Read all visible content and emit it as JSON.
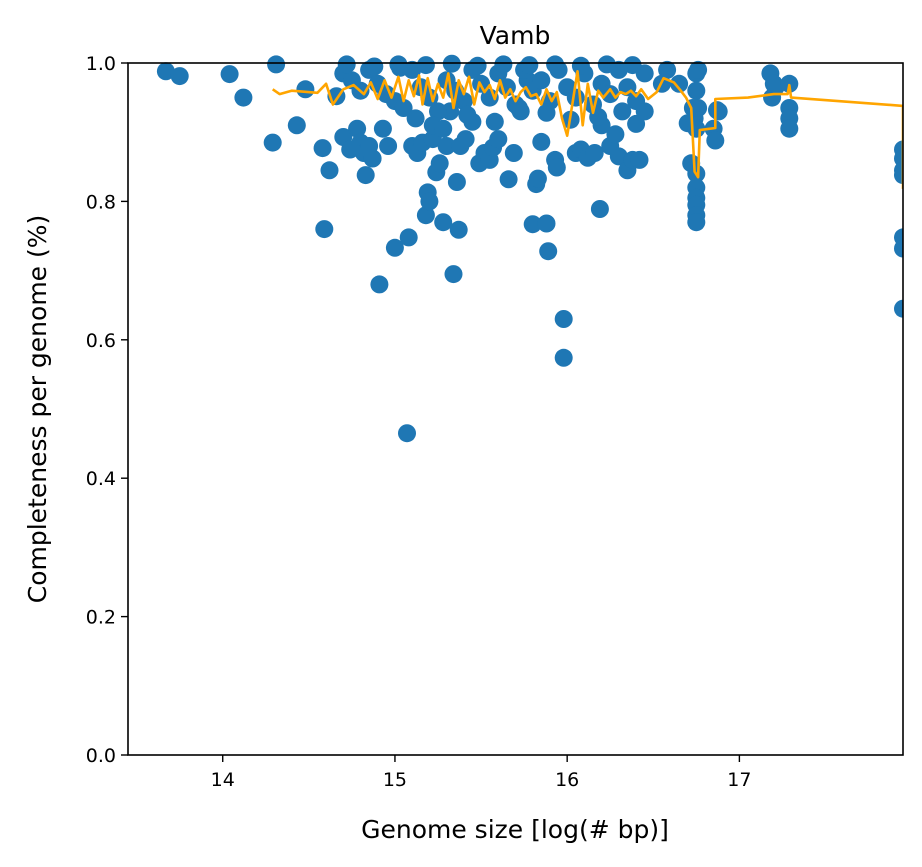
{
  "chart_data": {
    "type": "scatter",
    "title": "Vamb",
    "xlabel": "Genome size [log(# bp)]",
    "ylabel": "Completeness per genome (%)",
    "xlim": [
      13.45,
      17.95
    ],
    "ylim": [
      0.0,
      1.0
    ],
    "xticks": [
      14,
      15,
      16,
      17
    ],
    "yticks": [
      0.0,
      0.2,
      0.4,
      0.6,
      0.8,
      1.0
    ],
    "xtick_labels": [
      "14",
      "15",
      "16",
      "17"
    ],
    "ytick_labels": [
      "0.0",
      "0.2",
      "0.4",
      "0.6",
      "0.8",
      "1.0"
    ],
    "grid": false,
    "colors": {
      "points": "#1f77b4",
      "line": "#ffa500"
    },
    "series": [
      {
        "kind": "scatter",
        "points": [
          [
            13.67,
            0.988
          ],
          [
            13.75,
            0.981
          ],
          [
            14.04,
            0.984
          ],
          [
            14.12,
            0.95
          ],
          [
            14.29,
            0.885
          ],
          [
            14.31,
            0.998
          ],
          [
            14.43,
            0.91
          ],
          [
            14.48,
            0.962
          ],
          [
            14.58,
            0.877
          ],
          [
            14.59,
            0.76
          ],
          [
            14.62,
            0.845
          ],
          [
            14.66,
            0.952
          ],
          [
            14.7,
            0.893
          ],
          [
            14.74,
            0.875
          ],
          [
            14.78,
            0.905
          ],
          [
            14.8,
            0.885
          ],
          [
            14.82,
            0.87
          ],
          [
            14.83,
            0.838
          ],
          [
            14.85,
            0.88
          ],
          [
            14.87,
            0.862
          ],
          [
            14.91,
            0.68
          ],
          [
            14.93,
            0.905
          ],
          [
            14.96,
            0.88
          ],
          [
            15.0,
            0.733
          ],
          [
            15.03,
            0.993
          ],
          [
            15.07,
            0.465
          ],
          [
            15.08,
            0.748
          ],
          [
            15.1,
            0.88
          ],
          [
            15.13,
            0.87
          ],
          [
            15.16,
            0.885
          ],
          [
            15.18,
            0.78
          ],
          [
            15.19,
            0.813
          ],
          [
            15.2,
            0.8
          ],
          [
            15.22,
            0.89
          ],
          [
            15.24,
            0.842
          ],
          [
            15.26,
            0.855
          ],
          [
            15.28,
            0.77
          ],
          [
            15.3,
            0.88
          ],
          [
            15.32,
            0.93
          ],
          [
            15.34,
            0.695
          ],
          [
            15.36,
            0.828
          ],
          [
            15.37,
            0.759
          ],
          [
            15.38,
            0.88
          ],
          [
            15.41,
            0.89
          ],
          [
            15.45,
            0.915
          ],
          [
            15.49,
            0.855
          ],
          [
            15.52,
            0.87
          ],
          [
            15.55,
            0.86
          ],
          [
            15.57,
            0.878
          ],
          [
            15.6,
            0.89
          ],
          [
            15.66,
            0.832
          ],
          [
            15.69,
            0.87
          ],
          [
            15.73,
            0.93
          ],
          [
            15.77,
            0.975
          ],
          [
            15.8,
            0.767
          ],
          [
            15.82,
            0.825
          ],
          [
            15.83,
            0.833
          ],
          [
            15.85,
            0.886
          ],
          [
            15.88,
            0.768
          ],
          [
            15.89,
            0.728
          ],
          [
            15.93,
            0.86
          ],
          [
            15.94,
            0.849
          ],
          [
            15.98,
            0.63
          ],
          [
            15.98,
            0.574
          ],
          [
            16.05,
            0.87
          ],
          [
            16.08,
            0.875
          ],
          [
            16.12,
            0.863
          ],
          [
            16.16,
            0.87
          ],
          [
            16.19,
            0.789
          ],
          [
            16.2,
            0.91
          ],
          [
            16.25,
            0.88
          ],
          [
            16.28,
            0.897
          ],
          [
            16.3,
            0.865
          ],
          [
            16.35,
            0.845
          ],
          [
            16.38,
            0.86
          ],
          [
            16.42,
            0.86
          ],
          [
            16.4,
            0.912
          ],
          [
            16.45,
            0.985
          ],
          [
            16.55,
            0.97
          ],
          [
            16.58,
            0.99
          ],
          [
            16.65,
            0.97
          ],
          [
            16.7,
            0.913
          ],
          [
            16.72,
            0.855
          ],
          [
            16.73,
            0.935
          ],
          [
            16.74,
            0.92
          ],
          [
            16.75,
            0.905
          ],
          [
            16.75,
            0.84
          ],
          [
            16.75,
            0.82
          ],
          [
            16.75,
            0.805
          ],
          [
            16.75,
            0.795
          ],
          [
            16.75,
            0.78
          ],
          [
            16.75,
            0.77
          ],
          [
            16.75,
            0.985
          ],
          [
            16.75,
            0.96
          ],
          [
            16.76,
            0.99
          ],
          [
            16.76,
            0.935
          ],
          [
            16.85,
            0.905
          ],
          [
            16.86,
            0.888
          ],
          [
            16.87,
            0.932
          ],
          [
            16.88,
            0.93
          ],
          [
            17.18,
            0.985
          ],
          [
            17.19,
            0.95
          ],
          [
            17.2,
            0.97
          ],
          [
            17.21,
            0.965
          ],
          [
            17.29,
            0.97
          ],
          [
            17.29,
            0.935
          ],
          [
            17.29,
            0.92
          ],
          [
            17.29,
            0.905
          ],
          [
            17.95,
            0.875
          ],
          [
            17.95,
            0.862
          ],
          [
            17.95,
            0.845
          ],
          [
            17.95,
            0.838
          ],
          [
            17.95,
            0.748
          ],
          [
            17.95,
            0.732
          ],
          [
            17.95,
            0.645
          ],
          [
            14.7,
            0.985
          ],
          [
            14.75,
            0.975
          ],
          [
            14.8,
            0.96
          ],
          [
            14.85,
            0.99
          ],
          [
            14.9,
            0.97
          ],
          [
            14.95,
            0.955
          ],
          [
            15.0,
            0.945
          ],
          [
            15.05,
            0.935
          ],
          [
            15.1,
            0.99
          ],
          [
            15.15,
            0.965
          ],
          [
            15.2,
            0.95
          ],
          [
            15.25,
            0.93
          ],
          [
            15.3,
            0.975
          ],
          [
            15.35,
            0.96
          ],
          [
            15.4,
            0.945
          ],
          [
            15.45,
            0.99
          ],
          [
            15.5,
            0.97
          ],
          [
            15.55,
            0.95
          ],
          [
            15.6,
            0.985
          ],
          [
            15.65,
            0.965
          ],
          [
            15.7,
            0.94
          ],
          [
            15.75,
            0.99
          ],
          [
            15.8,
            0.96
          ],
          [
            15.85,
            0.975
          ],
          [
            15.9,
            0.945
          ],
          [
            15.95,
            0.99
          ],
          [
            16.0,
            0.965
          ],
          [
            16.05,
            0.95
          ],
          [
            16.1,
            0.985
          ],
          [
            16.15,
            0.94
          ],
          [
            16.2,
            0.97
          ],
          [
            16.25,
            0.955
          ],
          [
            16.3,
            0.99
          ],
          [
            16.35,
            0.965
          ],
          [
            16.4,
            0.945
          ],
          [
            16.45,
            0.93
          ],
          [
            14.72,
            0.998
          ],
          [
            14.88,
            0.995
          ],
          [
            15.02,
            0.998
          ],
          [
            15.18,
            0.997
          ],
          [
            15.33,
            0.999
          ],
          [
            15.48,
            0.996
          ],
          [
            15.63,
            0.998
          ],
          [
            15.78,
            0.997
          ],
          [
            15.93,
            0.998
          ],
          [
            16.08,
            0.996
          ],
          [
            16.23,
            0.998
          ],
          [
            16.38,
            0.997
          ],
          [
            15.12,
            0.92
          ],
          [
            15.22,
            0.91
          ],
          [
            15.28,
            0.905
          ],
          [
            15.42,
            0.925
          ],
          [
            15.58,
            0.915
          ],
          [
            15.72,
            0.935
          ],
          [
            15.88,
            0.928
          ],
          [
            16.02,
            0.918
          ],
          [
            16.18,
            0.922
          ],
          [
            16.32,
            0.93
          ]
        ]
      },
      {
        "kind": "line",
        "points": [
          [
            14.29,
            0.962
          ],
          [
            14.33,
            0.955
          ],
          [
            14.4,
            0.96
          ],
          [
            14.55,
            0.957
          ],
          [
            14.6,
            0.97
          ],
          [
            14.64,
            0.94
          ],
          [
            14.7,
            0.962
          ],
          [
            14.76,
            0.968
          ],
          [
            14.82,
            0.955
          ],
          [
            14.86,
            0.972
          ],
          [
            14.9,
            0.948
          ],
          [
            14.94,
            0.975
          ],
          [
            14.98,
            0.95
          ],
          [
            15.02,
            0.98
          ],
          [
            15.05,
            0.945
          ],
          [
            15.08,
            0.975
          ],
          [
            15.11,
            0.952
          ],
          [
            15.14,
            0.982
          ],
          [
            15.16,
            0.94
          ],
          [
            15.19,
            0.978
          ],
          [
            15.22,
            0.945
          ],
          [
            15.25,
            0.97
          ],
          [
            15.28,
            0.95
          ],
          [
            15.31,
            0.985
          ],
          [
            15.34,
            0.935
          ],
          [
            15.37,
            0.975
          ],
          [
            15.4,
            0.955
          ],
          [
            15.43,
            0.98
          ],
          [
            15.46,
            0.94
          ],
          [
            15.49,
            0.972
          ],
          [
            15.52,
            0.958
          ],
          [
            15.55,
            0.968
          ],
          [
            15.58,
            0.948
          ],
          [
            15.61,
            0.975
          ],
          [
            15.64,
            0.95
          ],
          [
            15.67,
            0.962
          ],
          [
            15.7,
            0.945
          ],
          [
            15.73,
            0.958
          ],
          [
            15.76,
            0.965
          ],
          [
            15.79,
            0.952
          ],
          [
            15.82,
            0.955
          ],
          [
            15.85,
            0.94
          ],
          [
            15.88,
            0.962
          ],
          [
            15.91,
            0.945
          ],
          [
            15.94,
            0.958
          ],
          [
            15.97,
            0.92
          ],
          [
            16.0,
            0.895
          ],
          [
            16.03,
            0.94
          ],
          [
            16.06,
            0.988
          ],
          [
            16.09,
            0.91
          ],
          [
            16.12,
            0.97
          ],
          [
            16.15,
            0.928
          ],
          [
            16.18,
            0.96
          ],
          [
            16.21,
            0.95
          ],
          [
            16.25,
            0.962
          ],
          [
            16.28,
            0.95
          ],
          [
            16.31,
            0.958
          ],
          [
            16.34,
            0.955
          ],
          [
            16.37,
            0.96
          ],
          [
            16.4,
            0.952
          ],
          [
            16.43,
            0.962
          ],
          [
            16.47,
            0.948
          ],
          [
            16.52,
            0.958
          ],
          [
            16.56,
            0.978
          ],
          [
            16.62,
            0.972
          ],
          [
            16.66,
            0.96
          ],
          [
            16.69,
            0.95
          ],
          [
            16.72,
            0.935
          ],
          [
            16.74,
            0.843
          ],
          [
            16.76,
            0.835
          ],
          [
            16.77,
            0.903
          ],
          [
            16.86,
            0.906
          ],
          [
            16.86,
            0.948
          ],
          [
            17.05,
            0.95
          ],
          [
            17.2,
            0.955
          ],
          [
            17.28,
            0.955
          ],
          [
            17.29,
            0.968
          ],
          [
            17.3,
            0.95
          ],
          [
            17.95,
            0.938
          ],
          [
            17.95,
            0.818
          ]
        ]
      }
    ]
  }
}
